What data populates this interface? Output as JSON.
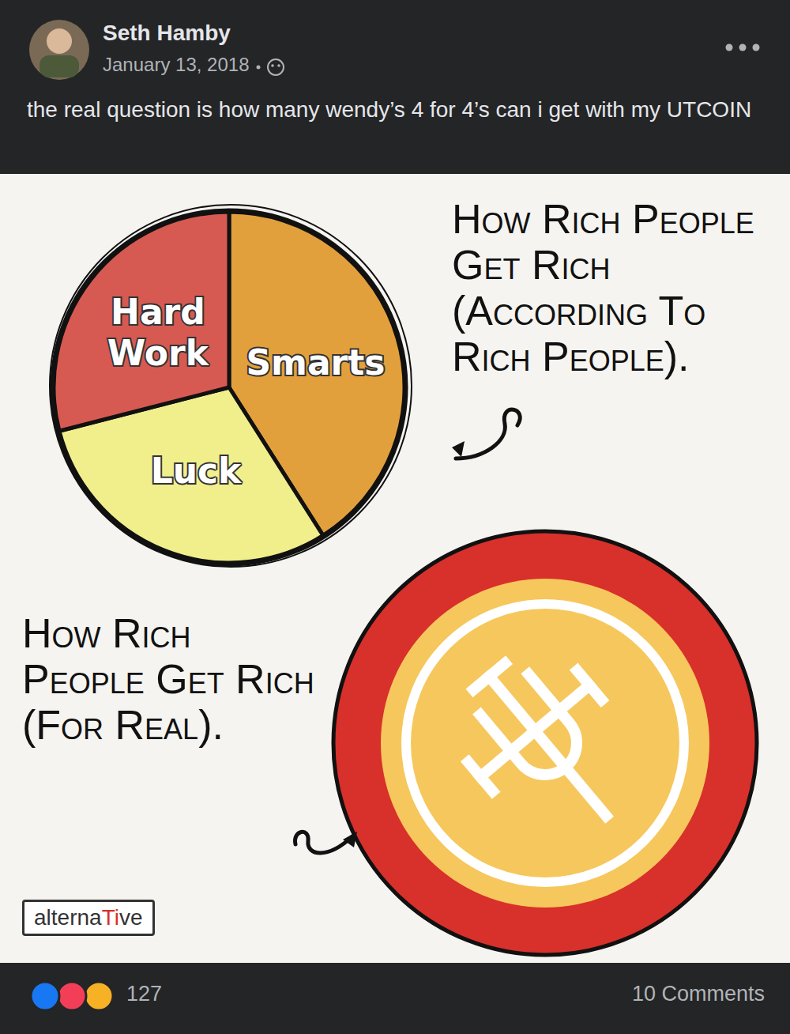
{
  "post": {
    "author": "Seth Hamby",
    "date": "January 13, 2018",
    "text": "the real question is how many wendy’s 4 for 4’s can i get with my UTCOIN"
  },
  "chart_data": {
    "type": "pie",
    "title": "How Rich People Get Rich (According To Rich People).",
    "categories": [
      "Smarts",
      "Luck",
      "Hard Work"
    ],
    "values": [
      41,
      30,
      29
    ],
    "colors": [
      "#e2a03c",
      "#f1ef8c",
      "#d75a52"
    ]
  },
  "second_panel": {
    "caption": "How Rich People Get Rich (For Real)."
  },
  "watermark": "alternaTive",
  "footer": {
    "reactions": 127,
    "comments": "10 Comments"
  }
}
